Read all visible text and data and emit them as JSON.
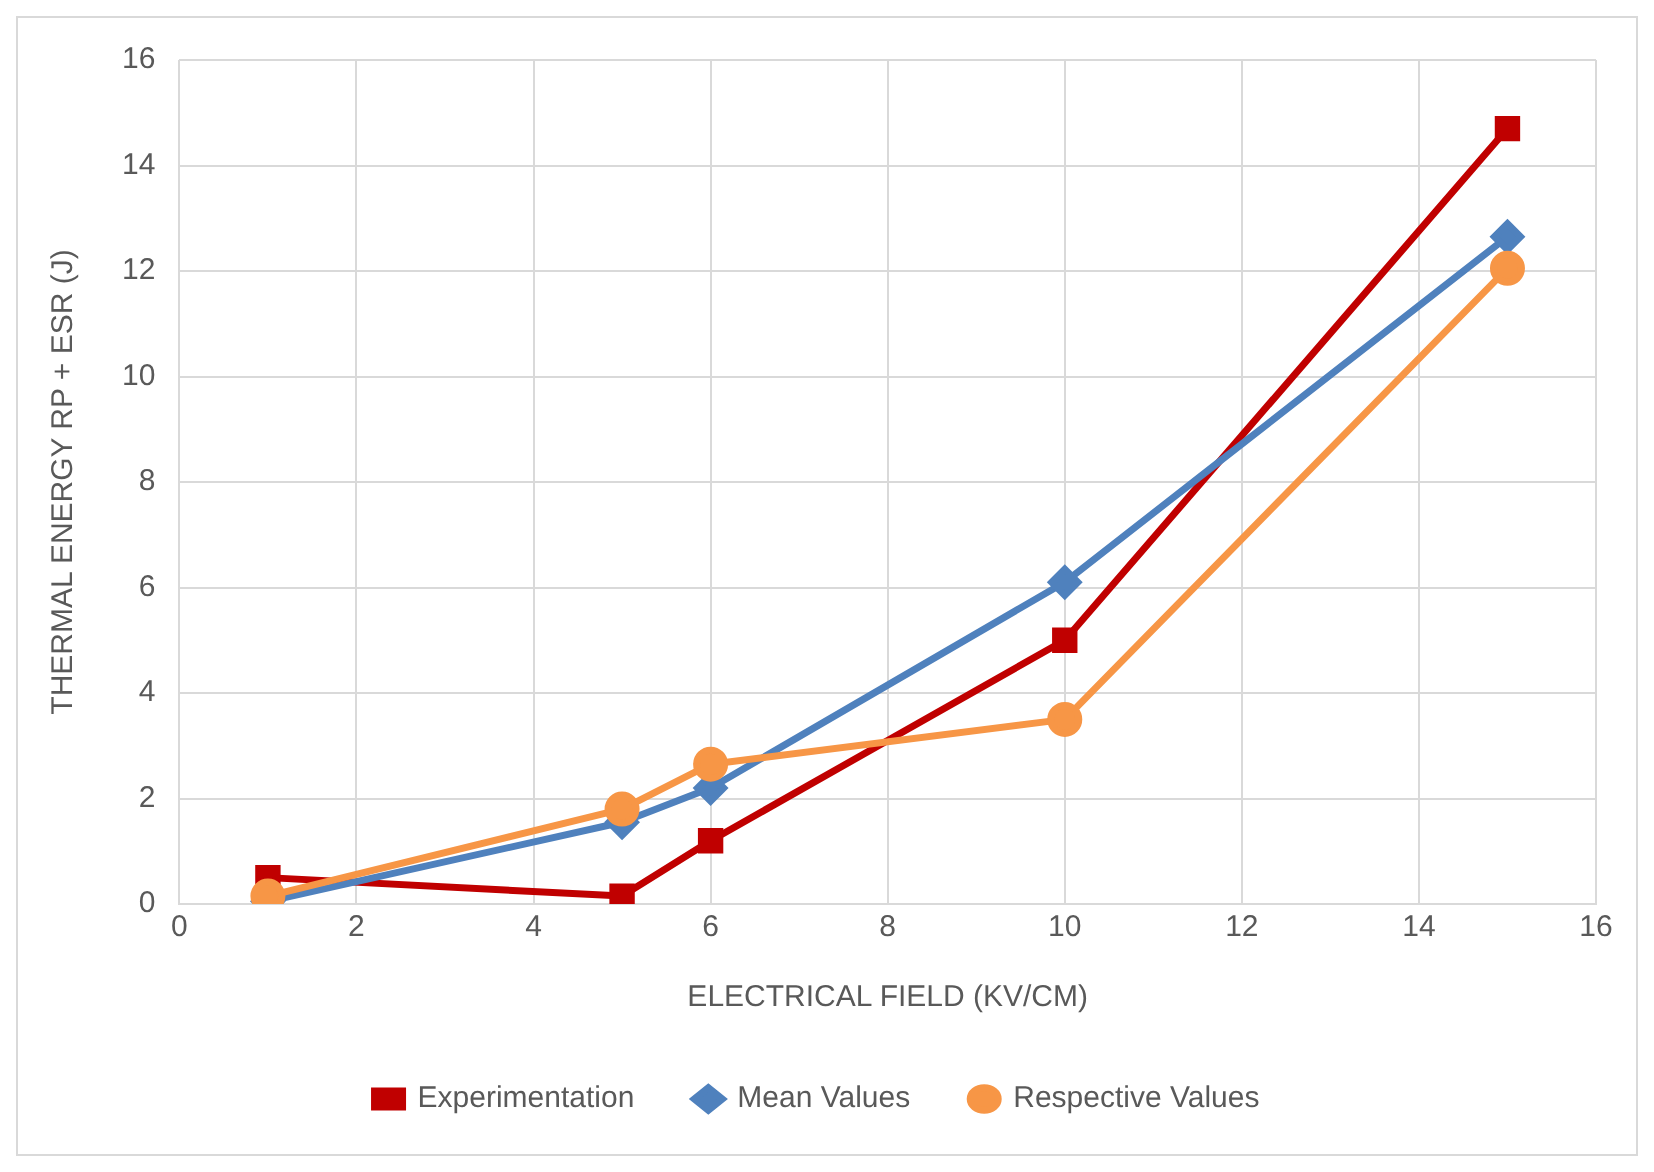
{
  "chart_data": {
    "type": "line",
    "xlabel": "ELECTRICAL FIELD (KV/CM)",
    "ylabel": "THERMAL ENERGY RP + ESR (J)",
    "x": [
      1,
      5,
      6,
      10,
      15
    ],
    "xlim": [
      0,
      16
    ],
    "xticks": [
      0,
      2,
      4,
      6,
      8,
      10,
      12,
      14,
      16
    ],
    "ylim": [
      0,
      16
    ],
    "yticks": [
      0,
      2,
      4,
      6,
      8,
      10,
      12,
      14,
      16
    ],
    "grid": true,
    "legend": "bottom",
    "line_style": "solid",
    "series": [
      {
        "name": "Experimentation",
        "color": "#c00000",
        "marker": "square",
        "values": [
          0.5,
          0.15,
          1.2,
          5.0,
          14.7
        ]
      },
      {
        "name": "Mean Values",
        "color": "#4f81bd",
        "marker": "diamond",
        "values": [
          0.05,
          1.55,
          2.2,
          6.1,
          12.65
        ]
      },
      {
        "name": "Respective Values",
        "color": "#f79646",
        "marker": "circle",
        "values": [
          0.15,
          1.8,
          2.65,
          3.5,
          12.05
        ]
      }
    ]
  }
}
